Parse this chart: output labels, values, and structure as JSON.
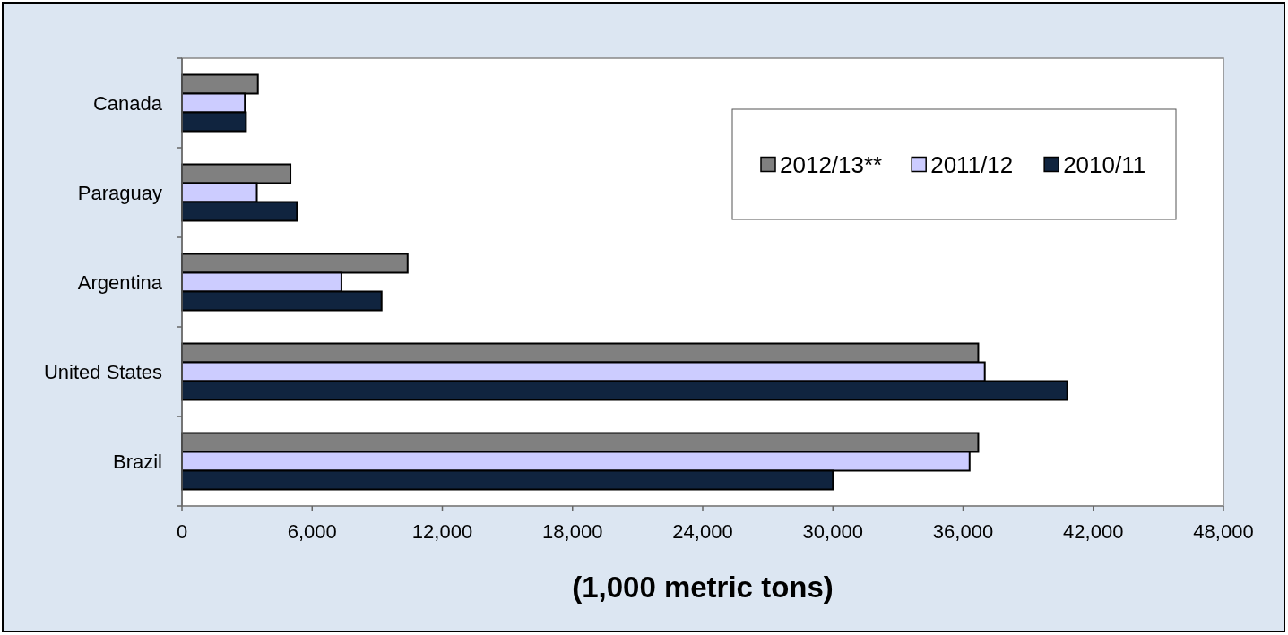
{
  "chart_data": {
    "type": "bar",
    "orientation": "horizontal",
    "xlabel": "(1,000 metric tons)",
    "categories": [
      "Canada",
      "Paraguay",
      "Argentina",
      "United States",
      "Brazil"
    ],
    "series": [
      {
        "name": "2012/13**",
        "color": "#808080",
        "values": [
          3500,
          5000,
          10400,
          36700,
          36700
        ]
      },
      {
        "name": "2011/12",
        "color": "#ccccff",
        "values": [
          2900,
          3450,
          7350,
          37000,
          36300
        ]
      },
      {
        "name": "2010/11",
        "color": "#10243f",
        "values": [
          2950,
          5300,
          9200,
          40800,
          30000
        ]
      }
    ],
    "xlim": [
      0,
      48000
    ],
    "xticks": [
      0,
      {
        "value": 6000,
        "label": "6,000"
      },
      {
        "value": 12000,
        "label": "12,000"
      },
      {
        "value": 18000,
        "label": "18,000"
      },
      {
        "value": 24000,
        "label": "24,000"
      },
      {
        "value": 30000,
        "label": "30,000"
      },
      {
        "value": 36000,
        "label": "36,000"
      },
      {
        "value": 42000,
        "label": "42,000"
      },
      {
        "value": 48000,
        "label": "48,000"
      }
    ],
    "grid": false,
    "legend": "top right"
  }
}
